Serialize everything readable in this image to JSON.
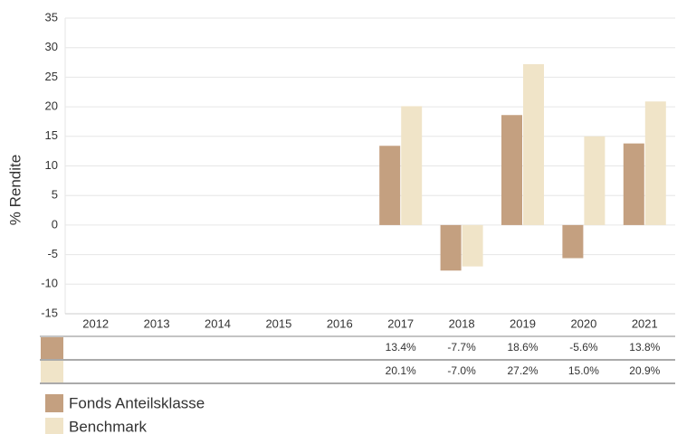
{
  "chart_data": {
    "type": "bar",
    "y_label": "% Rendite",
    "categories": [
      "2012",
      "2013",
      "2014",
      "2015",
      "2016",
      "2017",
      "2018",
      "2019",
      "2020",
      "2021"
    ],
    "series": [
      {
        "name": "Fonds Anteilsklasse",
        "color": "#c4a080",
        "values": [
          null,
          null,
          null,
          null,
          null,
          13.4,
          -7.7,
          18.6,
          -5.6,
          13.8
        ],
        "value_labels": [
          null,
          null,
          null,
          null,
          null,
          "13.4%",
          "-7.7%",
          "18.6%",
          "-5.6%",
          "13.8%"
        ]
      },
      {
        "name": "Benchmark",
        "color": "#f0e4c8",
        "values": [
          null,
          null,
          null,
          null,
          null,
          20.1,
          -7.0,
          27.2,
          15.0,
          20.9
        ],
        "value_labels": [
          null,
          null,
          null,
          null,
          null,
          "20.1%",
          "-7.0%",
          "27.2%",
          "15.0%",
          "20.9%"
        ]
      }
    ],
    "ylim": [
      -15,
      35
    ],
    "yticks": [
      -15,
      -10,
      -5,
      0,
      5,
      10,
      15,
      20,
      25,
      30,
      35
    ],
    "grid": true
  }
}
